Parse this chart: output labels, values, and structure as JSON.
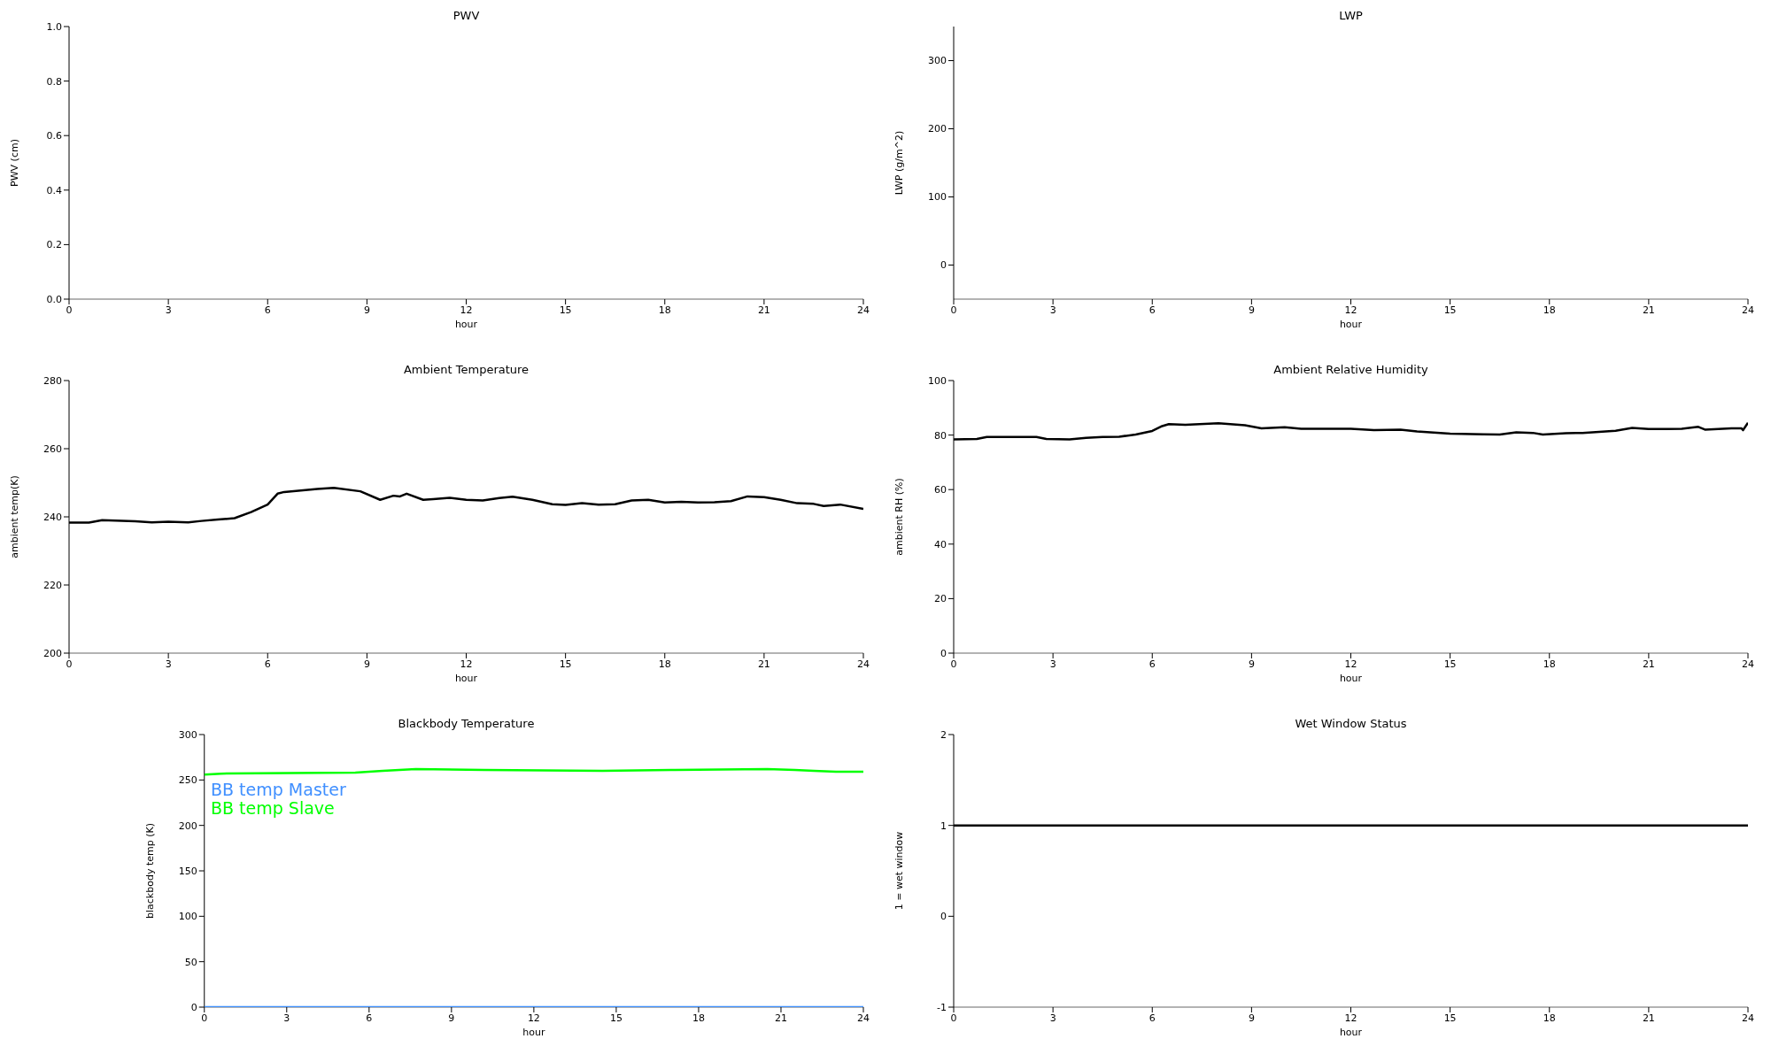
{
  "chart_data": [
    {
      "type": "line",
      "title": "PWV",
      "xlabel": "hour",
      "ylabel": "PWV (cm)",
      "xlim": [
        0,
        24
      ],
      "xticks": [
        0,
        3,
        6,
        9,
        12,
        15,
        18,
        21,
        24
      ],
      "ylim": [
        0,
        1
      ],
      "yticks": [
        {
          "value": 0,
          "label": "0.0"
        },
        {
          "value": 0.2,
          "label": "0.2"
        },
        {
          "value": 0.4,
          "label": "0.4"
        },
        {
          "value": 0.6,
          "label": "0.6"
        },
        {
          "value": 0.8,
          "label": "0.8"
        },
        {
          "value": 1,
          "label": "1.0"
        }
      ]
    },
    {
      "type": "line",
      "title": "LWP",
      "xlabel": "hour",
      "ylabel": "LWP (g/m^2)",
      "xlim": [
        0,
        24
      ],
      "xticks": [
        0,
        3,
        6,
        9,
        12,
        15,
        18,
        21,
        24
      ],
      "ylim": [
        -50,
        350
      ],
      "yticks": [
        0,
        100,
        200,
        300
      ]
    },
    {
      "type": "line",
      "title": "Ambient Temperature",
      "xlabel": "hour",
      "ylabel": "ambient temp(K)",
      "xlim": [
        0,
        24
      ],
      "xticks": [
        0,
        3,
        6,
        9,
        12,
        15,
        18,
        21,
        24
      ],
      "ylim": [
        200,
        280
      ],
      "yticks": [
        200,
        220,
        240,
        260,
        280
      ],
      "series": [
        {
          "color": "#000000",
          "x": [
            0,
            0.6,
            1,
            2,
            2.5,
            3,
            3.6,
            4,
            4.5,
            5,
            5.5,
            6,
            6.3,
            6.5,
            7.5,
            8,
            8.8,
            9.4,
            9.8,
            10,
            10.2,
            10.7,
            11,
            11.5,
            12,
            12.5,
            13,
            13.4,
            14,
            14.6,
            15,
            15.5,
            16,
            16.5,
            17,
            17.5,
            18,
            18.5,
            19,
            19.5,
            20,
            20.5,
            21,
            21.5,
            22,
            22.5,
            22.8,
            23.3,
            24
          ],
          "values": [
            238.3,
            238.3,
            239,
            238.7,
            238.4,
            238.6,
            238.4,
            238.8,
            239.2,
            239.6,
            241.4,
            243.6,
            246.8,
            247.3,
            248.2,
            248.5,
            247.5,
            245,
            246.2,
            246,
            246.8,
            245,
            245.2,
            245.6,
            245,
            244.8,
            245.5,
            245.9,
            245,
            243.7,
            243.5,
            244,
            243.6,
            243.7,
            244.8,
            245,
            244.2,
            244.4,
            244.2,
            244.3,
            244.6,
            246,
            245.8,
            245,
            244,
            243.8,
            243.2,
            243.6,
            242.3
          ]
        }
      ]
    },
    {
      "type": "line",
      "title": "Ambient Relative Humidity",
      "xlabel": "hour",
      "ylabel": "ambient RH (%)",
      "xlim": [
        0,
        24
      ],
      "xticks": [
        0,
        3,
        6,
        9,
        12,
        15,
        18,
        21,
        24
      ],
      "ylim": [
        0,
        100
      ],
      "yticks": [
        0,
        20,
        40,
        60,
        80,
        100
      ],
      "series": [
        {
          "color": "#000000",
          "x": [
            0,
            0.7,
            1,
            2.5,
            2.8,
            3.5,
            4,
            4.5,
            5,
            5.5,
            6,
            6.3,
            6.5,
            7,
            8,
            8.8,
            9.3,
            10,
            10.5,
            12,
            12.7,
            13.5,
            14,
            15,
            16,
            16.5,
            17,
            17.5,
            17.8,
            18.5,
            19,
            19.5,
            20,
            20.5,
            21,
            21.5,
            22,
            22.5,
            22.7,
            23.5,
            23.8,
            23.85,
            24
          ],
          "values": [
            78.4,
            78.6,
            79.3,
            79.3,
            78.6,
            78.4,
            79,
            79.3,
            79.4,
            80.2,
            81.5,
            83.3,
            84,
            83.8,
            84.3,
            83.6,
            82.5,
            82.9,
            82.3,
            82.3,
            81.8,
            82,
            81.3,
            80.5,
            80.3,
            80.2,
            81,
            80.8,
            80.2,
            80.7,
            80.8,
            81.2,
            81.6,
            82.6,
            82.2,
            82.2,
            82.3,
            83,
            82,
            82.5,
            82.5,
            81.8,
            84.5
          ]
        }
      ]
    },
    {
      "type": "line",
      "title": "Blackbody Temperature",
      "xlabel": "hour",
      "ylabel": "blackbody temp (K)",
      "xlim": [
        0,
        24
      ],
      "xticks": [
        0,
        3,
        6,
        9,
        12,
        15,
        18,
        21,
        24
      ],
      "ylim": [
        0,
        300
      ],
      "yticks": [
        0,
        50,
        100,
        150,
        200,
        250,
        300
      ],
      "legend": "top left",
      "series": [
        {
          "name": "BB temp Master",
          "color": "#3f8fff",
          "x": [
            0,
            24
          ],
          "values": [
            0,
            0
          ]
        },
        {
          "name": "BB temp Slave",
          "color": "#00ff00",
          "x": [
            0,
            0.6,
            5.5,
            6.5,
            7.7,
            10.2,
            14.5,
            17,
            20.5,
            21.5,
            22.2,
            23,
            24
          ],
          "values": [
            256,
            257,
            258,
            260,
            262,
            261,
            260,
            261,
            262,
            261,
            260,
            259,
            259
          ]
        }
      ]
    },
    {
      "type": "line",
      "title": "Wet Window Status",
      "xlabel": "hour",
      "ylabel": "1 = wet window",
      "xlim": [
        0,
        24
      ],
      "xticks": [
        0,
        3,
        6,
        9,
        12,
        15,
        18,
        21,
        24
      ],
      "ylim": [
        -1,
        2
      ],
      "yticks": [
        -1,
        0,
        1,
        2
      ],
      "series": [
        {
          "color": "#000000",
          "x": [
            0,
            24
          ],
          "values": [
            1,
            1
          ]
        }
      ]
    }
  ]
}
